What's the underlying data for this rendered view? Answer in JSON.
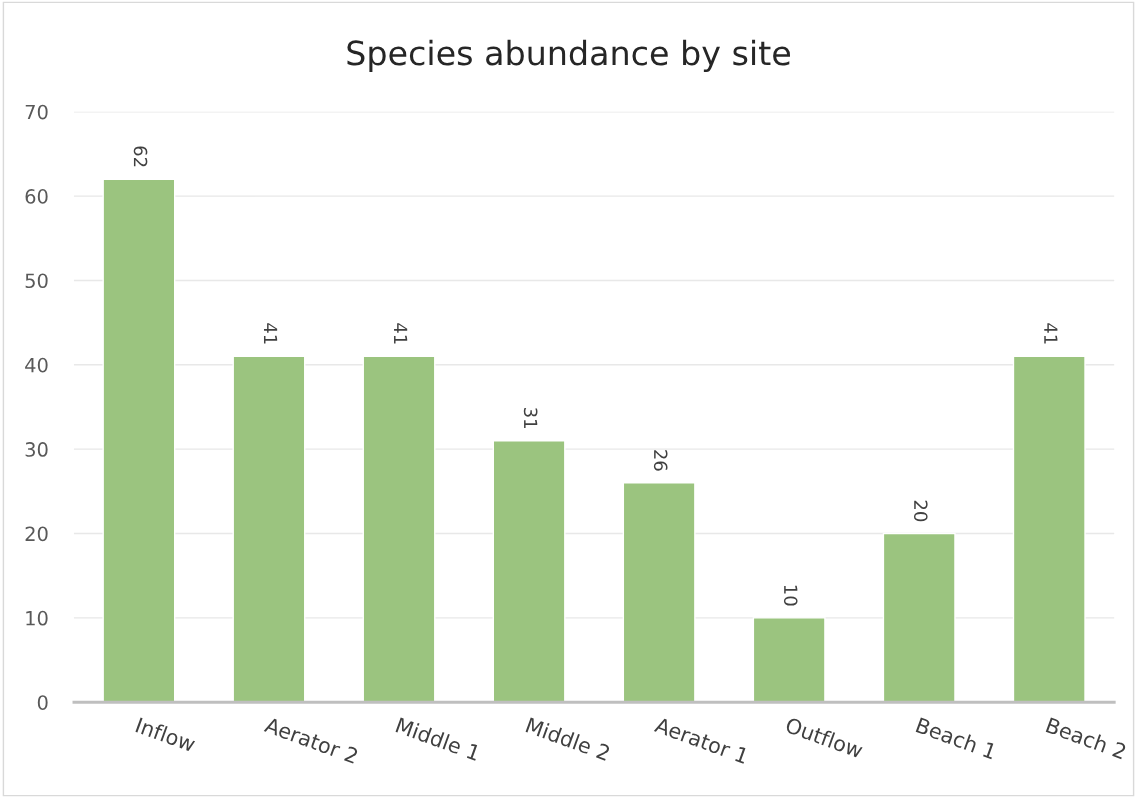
{
  "chart_data": {
    "type": "bar",
    "title": "Species abundance by site",
    "categories": [
      "Inflow",
      "Aerator 2",
      "Middle 1",
      "Middle 2",
      "Aerator 1",
      "Outflow",
      "Beach 1",
      "Beach 2"
    ],
    "values": [
      62,
      41,
      41,
      31,
      26,
      10,
      20,
      41
    ],
    "color": "#9bc47f",
    "ylim": [
      0,
      70
    ],
    "yticks": [
      0,
      10,
      20,
      30,
      40,
      50,
      60,
      70
    ],
    "grid": "y",
    "data_labels": true
  }
}
